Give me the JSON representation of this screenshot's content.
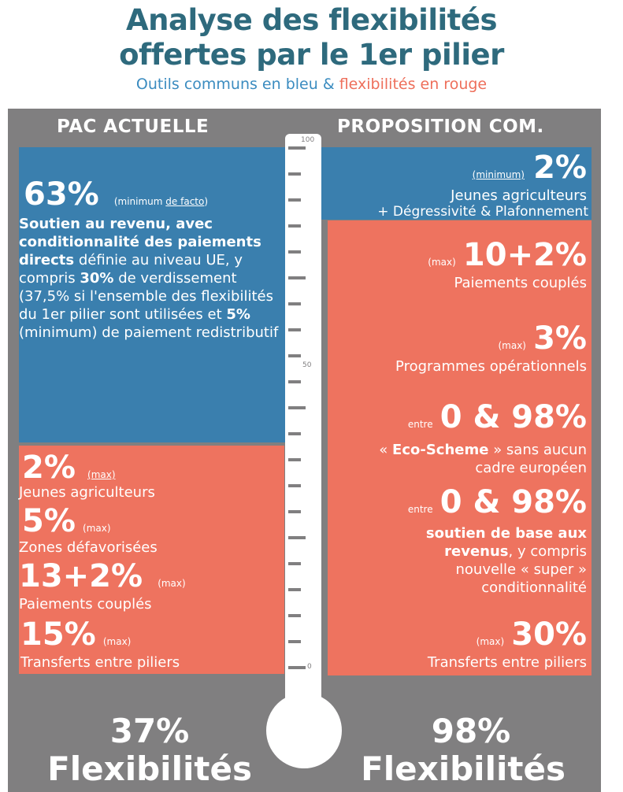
{
  "header": {
    "title_line1": "Analyse des flexibilités",
    "title_line2": "offertes par le 1er pilier",
    "subtitle_blue": "Outils communs en bleu",
    "subtitle_amp": "&",
    "subtitle_red": "flexibilités en rouge"
  },
  "left": {
    "title": "PAC ACTUELLE",
    "blue": {
      "pct": "63%",
      "note_pre": "(minimum ",
      "note_link": "de facto",
      "note_post": ")",
      "bold1": "Soutien au revenu, avec conditionnalité des paiements directs",
      "text1": " définie au niveau UE, y compris ",
      "bold2": "30%",
      "text2": " de verdissement (37,5% si l'ensemble des flexibilités du 1er pilier sont utilisées et ",
      "bold3": "5%",
      "text3": " (minimum) de paiement redistributif"
    },
    "red_items": [
      {
        "pct": "2%",
        "note": "(max)",
        "note_underline": true,
        "label": "Jeunes agriculteurs"
      },
      {
        "pct": "5%",
        "note": "(max)",
        "note_underline": false,
        "label": "Zones défavorisées"
      },
      {
        "pct": "13+2%",
        "note": "(max)",
        "note_underline": false,
        "label": "Paiements couplés"
      },
      {
        "pct": "15%",
        "note": "(max)",
        "note_underline": false,
        "label": "Transferts entre piliers"
      }
    ],
    "total_pct": "37%",
    "total_label": "Flexibilités"
  },
  "right": {
    "title": "PROPOSITION COM.",
    "blue": {
      "note": "(minimum)",
      "pct": "2%",
      "line1": "Jeunes agriculteurs",
      "line2": "+ Dégressivité & Plafonnement"
    },
    "red": {
      "i1_note": "(max)",
      "i1_pct": "10+2%",
      "i1_label": "Paiements couplés",
      "i2_note": "(max)",
      "i2_pct": "3%",
      "i2_label": "Programmes opérationnels",
      "i3_note": "entre",
      "i3_pct": "0 & 98%",
      "i3_text_pre": "« ",
      "i3_bold": "Eco-Scheme",
      "i3_text_post": " » sans aucun",
      "i3_line2": "cadre européen",
      "i4_note": "entre",
      "i4_pct": "0 & 98%",
      "i4_bold": "soutien de base aux revenus",
      "i4_text": ", y compris nouvelle « super » conditionnalité",
      "i5_note": "(max)",
      "i5_pct": "30%",
      "i5_label": "Transferts entre piliers"
    },
    "total_pct": "98%",
    "total_label": "Flexibilités"
  },
  "thermometer": {
    "scale_top": "100",
    "scale_mid": "50",
    "scale_bottom": "0",
    "level_left_percent": 37,
    "level_right_percent": 98
  }
}
